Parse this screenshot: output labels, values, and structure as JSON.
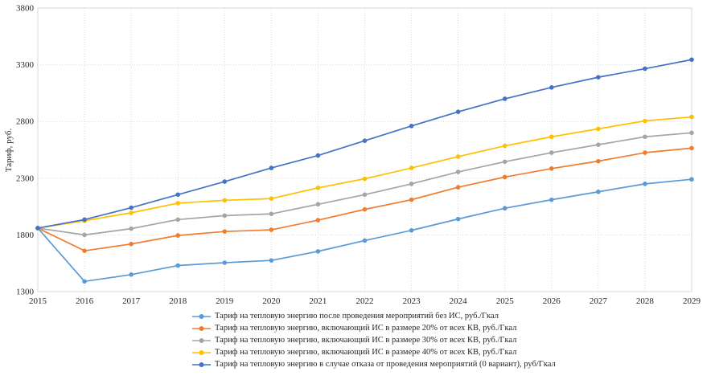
{
  "chart_data": {
    "type": "line",
    "title": "",
    "xlabel": "",
    "ylabel": "Тариф, руб.",
    "x": [
      2015,
      2016,
      2017,
      2018,
      2019,
      2020,
      2021,
      2022,
      2023,
      2024,
      2025,
      2026,
      2027,
      2028,
      2029
    ],
    "ylim": [
      1300,
      3800
    ],
    "yticks": [
      1300,
      1800,
      2300,
      2800,
      3300,
      3800
    ],
    "grid": "dotted horizontal and vertical gridlines",
    "legend_position": "bottom-left",
    "marker": "circle",
    "series": [
      {
        "name": "Тариф на тепловую энергию после проведения мероприятий без ИС, руб./Гкал",
        "color": "#5B9BD5",
        "values": [
          1860,
          1390,
          1450,
          1530,
          1555,
          1575,
          1655,
          1750,
          1840,
          1940,
          2035,
          2110,
          2180,
          2250,
          2290
        ]
      },
      {
        "name": "Тариф на тепловую энергию, включающий ИС в размере 20% от всех КВ, руб./Гкал",
        "color": "#ED7D31",
        "values": [
          1860,
          1660,
          1720,
          1795,
          1830,
          1845,
          1930,
          2025,
          2110,
          2220,
          2310,
          2385,
          2450,
          2525,
          2565
        ]
      },
      {
        "name": "Тариф на тепловую энергию, включающий ИС в размере 30% от всех КВ, руб./Гкал",
        "color": "#A5A5A5",
        "values": [
          1860,
          1800,
          1855,
          1935,
          1970,
          1985,
          2070,
          2155,
          2250,
          2355,
          2445,
          2525,
          2595,
          2665,
          2700
        ]
      },
      {
        "name": "Тариф на тепловую энергию, включающий ИС в размере 40% от всех КВ, руб./Гкал",
        "color": "#FFC000",
        "values": [
          1860,
          1925,
          1995,
          2080,
          2105,
          2120,
          2215,
          2295,
          2390,
          2490,
          2585,
          2665,
          2735,
          2805,
          2840
        ]
      },
      {
        "name": "Тариф на тепловую энергию в случае отказа от проведения мероприятий (0 вариант), руб/Гкал",
        "color": "#4472C4",
        "values": [
          1860,
          1935,
          2040,
          2155,
          2270,
          2390,
          2500,
          2630,
          2760,
          2885,
          3000,
          3100,
          3190,
          3265,
          3345
        ]
      }
    ],
    "colors": {
      "gridline": "#D9D9D9",
      "plot_border": "#D9D9D9",
      "tick_text": "#262626"
    }
  }
}
